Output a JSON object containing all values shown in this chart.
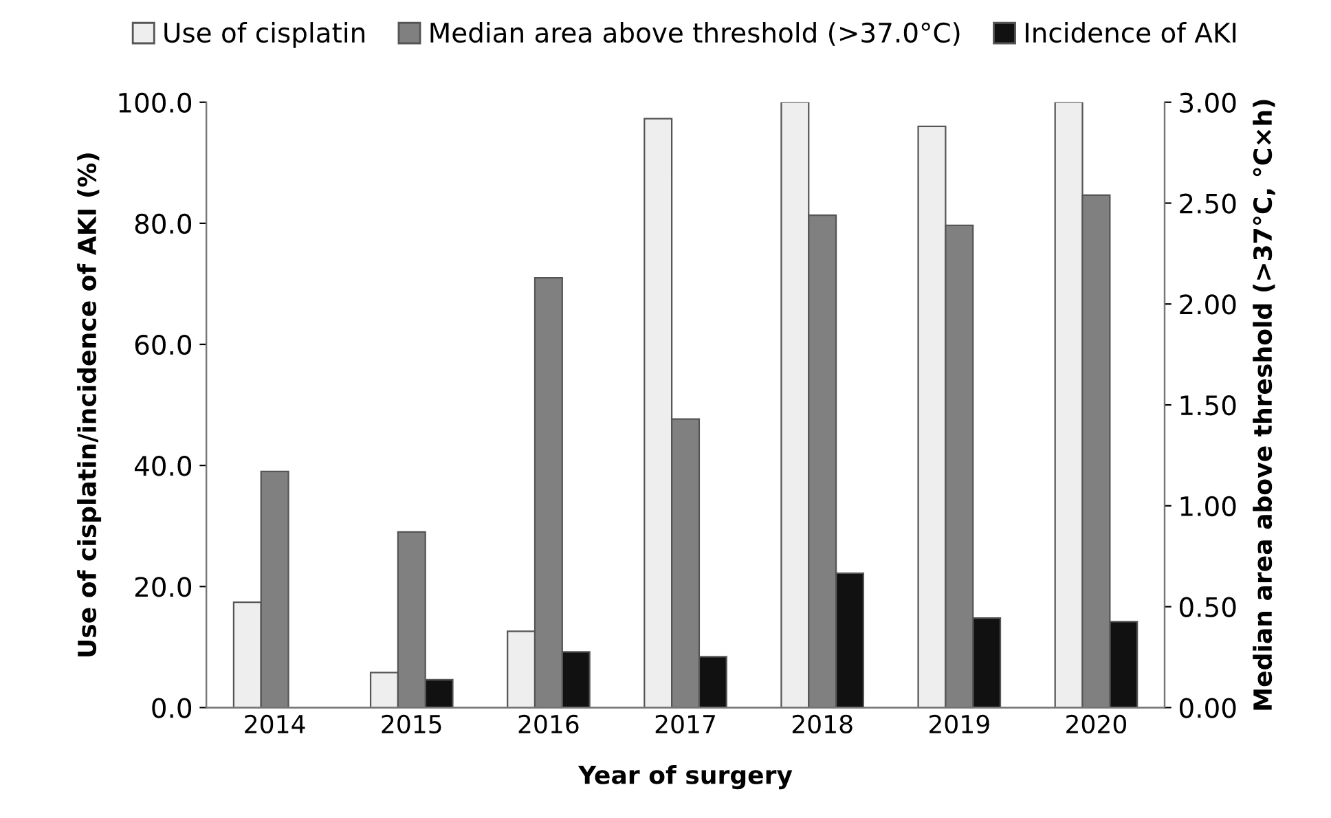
{
  "chart_data": {
    "type": "bar",
    "xlabel": "Year of surgery",
    "ylabel": "Use of cisplatin/incidence of AKI (%)",
    "y2label": "Median area above threshold (>37°C, °C×h)",
    "categories": [
      "2014",
      "2015",
      "2016",
      "2017",
      "2018",
      "2019",
      "2020"
    ],
    "series": [
      {
        "name": "Use of cisplatin",
        "color": "#eeeeee",
        "values": [
          17.4,
          5.8,
          12.6,
          97.3,
          100.0,
          96.0,
          100.0
        ]
      },
      {
        "name": "Median area above threshold (>37.0°C)",
        "color": "#808080",
        "axis": "y2",
        "values": [
          1.17,
          0.87,
          2.13,
          1.43,
          2.44,
          2.39,
          2.54
        ]
      },
      {
        "name": "Incidence of AKI",
        "color": "#111111",
        "values": [
          null,
          4.6,
          9.2,
          8.4,
          22.2,
          14.8,
          14.2
        ]
      }
    ],
    "ylim": [
      0,
      100
    ],
    "yticks": [
      {
        "value": 0,
        "label": "0.0"
      },
      {
        "value": 20,
        "label": "20.0"
      },
      {
        "value": 40,
        "label": "40.0"
      },
      {
        "value": 60,
        "label": "60.0"
      },
      {
        "value": 80,
        "label": "80.0"
      },
      {
        "value": 100,
        "label": "100.0"
      }
    ],
    "y2lim": [
      0,
      3
    ],
    "y2ticks": [
      {
        "value": 0,
        "label": "0.00"
      },
      {
        "value": 0.5,
        "label": "0.50"
      },
      {
        "value": 1,
        "label": "1.00"
      },
      {
        "value": 1.5,
        "label": "1.50"
      },
      {
        "value": 2,
        "label": "2.00"
      },
      {
        "value": 2.5,
        "label": "2.50"
      },
      {
        "value": 3,
        "label": "3.00"
      }
    ],
    "grid": false,
    "legend": "top"
  }
}
